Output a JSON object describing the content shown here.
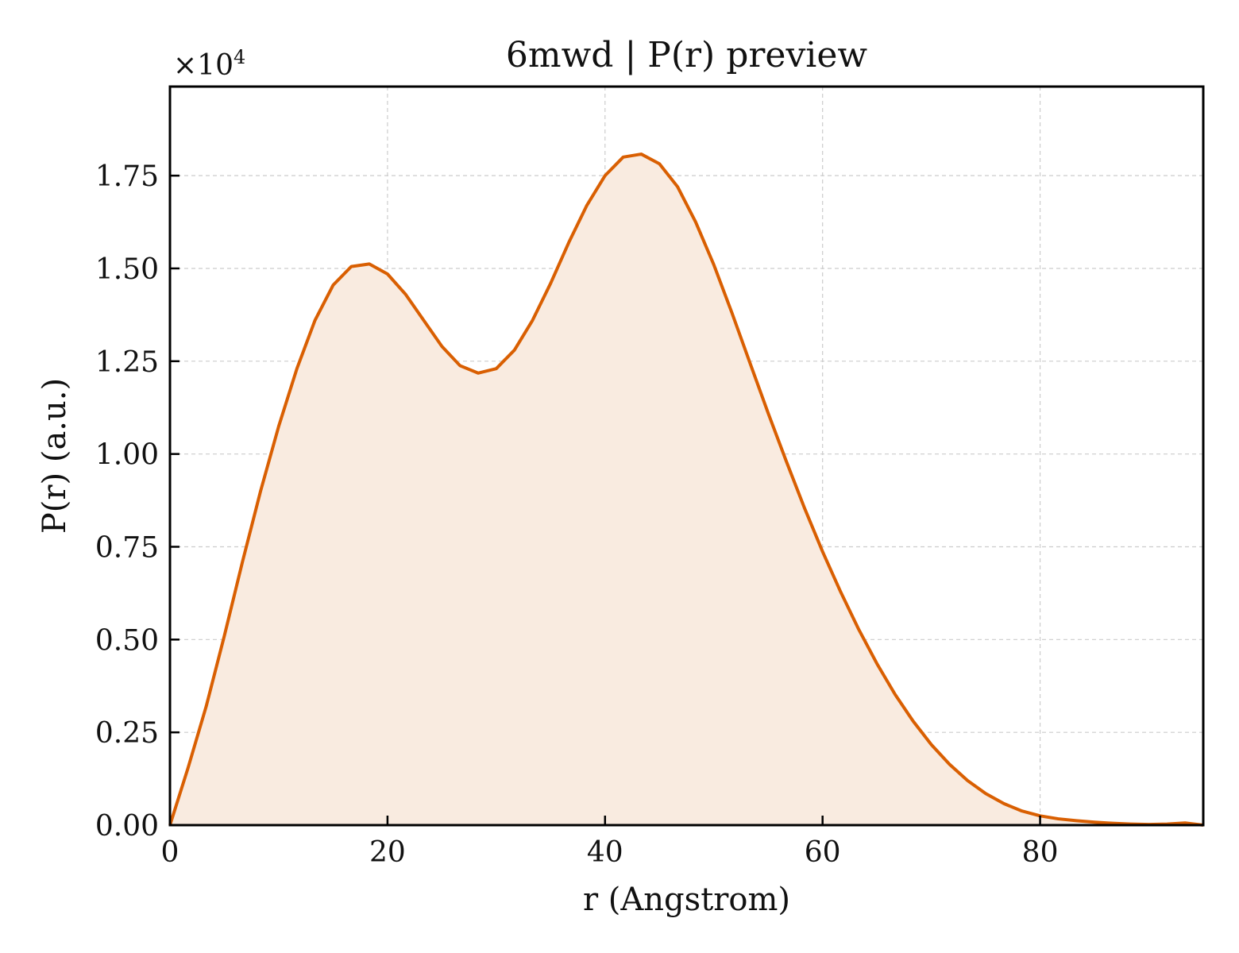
{
  "chart_data": {
    "type": "area",
    "title": "6mwd | P(r) preview",
    "xlabel": "r (Angstrom)",
    "ylabel": "P(r) (a.u.)",
    "y_multiplier": "×10",
    "y_multiplier_exp": "4",
    "xlim": [
      0,
      95
    ],
    "ylim": [
      0,
      1.99
    ],
    "xticks": [
      0,
      20,
      40,
      60,
      80
    ],
    "xtick_labels": [
      "0",
      "20",
      "40",
      "60",
      "80"
    ],
    "yticks": [
      0,
      0.25,
      0.5,
      0.75,
      1.0,
      1.25,
      1.5,
      1.75
    ],
    "ytick_labels": [
      "0.00",
      "0.25",
      "0.50",
      "0.75",
      "1.00",
      "1.25",
      "1.50",
      "1.75"
    ],
    "grid": true,
    "line_color": "#d95f02",
    "fill_color": "#f9ebe0",
    "series": [
      {
        "x": [
          0,
          1.67,
          3.33,
          5.0,
          6.67,
          8.33,
          10.0,
          11.67,
          13.33,
          15.0,
          16.67,
          18.33,
          20.0,
          21.67,
          23.33,
          25.0,
          26.67,
          28.33,
          30.0,
          31.67,
          33.33,
          35.0,
          36.67,
          38.33,
          40.0,
          41.67,
          43.33,
          45.0,
          46.67,
          48.33,
          50.0,
          51.67,
          53.33,
          55.0,
          56.67,
          58.33,
          60.0,
          61.67,
          63.33,
          65.0,
          66.67,
          68.33,
          70.0,
          71.67,
          73.33,
          75.0,
          76.67,
          78.33,
          80.0,
          81.67,
          83.33,
          85.0,
          86.67,
          88.33,
          90.0,
          91.67,
          93.33,
          95.0
        ],
        "y": [
          0.0,
          0.155,
          0.32,
          0.51,
          0.71,
          0.9,
          1.075,
          1.23,
          1.36,
          1.455,
          1.505,
          1.512,
          1.485,
          1.43,
          1.36,
          1.29,
          1.238,
          1.218,
          1.23,
          1.28,
          1.36,
          1.46,
          1.57,
          1.67,
          1.75,
          1.8,
          1.808,
          1.782,
          1.72,
          1.625,
          1.51,
          1.38,
          1.245,
          1.11,
          0.98,
          0.855,
          0.737,
          0.628,
          0.527,
          0.435,
          0.352,
          0.28,
          0.217,
          0.164,
          0.12,
          0.085,
          0.058,
          0.038,
          0.025,
          0.017,
          0.012,
          0.008,
          0.005,
          0.003,
          0.002,
          0.003,
          0.006,
          0.0
        ]
      }
    ]
  }
}
